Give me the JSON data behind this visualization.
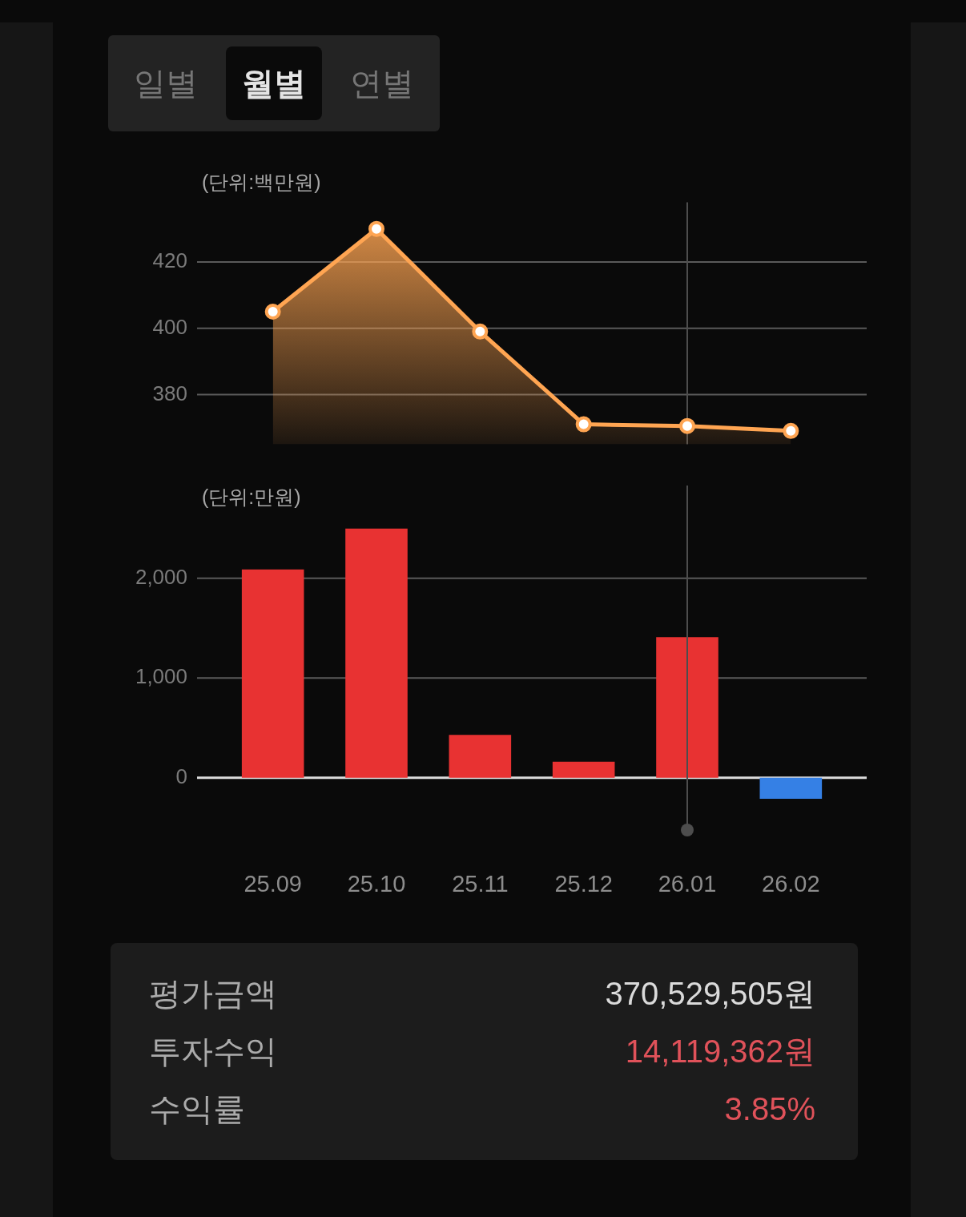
{
  "chart_data": [
    {
      "type": "other",
      "annotations": [
        "일별",
        "월별",
        "연별"
      ]
    },
    {
      "type": "area",
      "ylabel": "(단위:백만원)",
      "categories": [
        "25.09",
        "25.10",
        "25.11",
        "25.12",
        "26.01",
        "26.02"
      ],
      "values": [
        405,
        430,
        399,
        371,
        370.5,
        369
      ],
      "color": "#ffa552",
      "ylim": [
        365,
        438
      ],
      "yticks": [
        380,
        400,
        420
      ],
      "grid": "y",
      "marker": "circle",
      "tick_labels": "y",
      "ref_lines": [
        {
          "axis": "x",
          "value": "26.01",
          "color": "#4d4d4d"
        }
      ]
    },
    {
      "type": "bar",
      "ylabel": "(단위:만원)",
      "categories": [
        "25.09",
        "25.10",
        "25.11",
        "25.12",
        "26.01",
        "26.02"
      ],
      "values": [
        2090,
        2500,
        430,
        160,
        1410,
        -210
      ],
      "colors": [
        "#e83232",
        "#e83232",
        "#e83232",
        "#e83232",
        "#e83232",
        "#3580e5"
      ],
      "ylim": [
        -500,
        2500
      ],
      "yticks": [
        0,
        {
          "value": 1000,
          "label": "1,000"
        },
        {
          "value": 2000,
          "label": "2,000"
        }
      ],
      "grid": "y",
      "ref_lines": [
        {
          "axis": "x",
          "value": "26.01",
          "color": "#4d4d4d"
        }
      ]
    },
    {
      "type": "other",
      "annotations": [
        "평가금액",
        "370,529,505원",
        "투자수익",
        "14,119,362원",
        "수익률",
        "3.85%"
      ]
    }
  ]
}
